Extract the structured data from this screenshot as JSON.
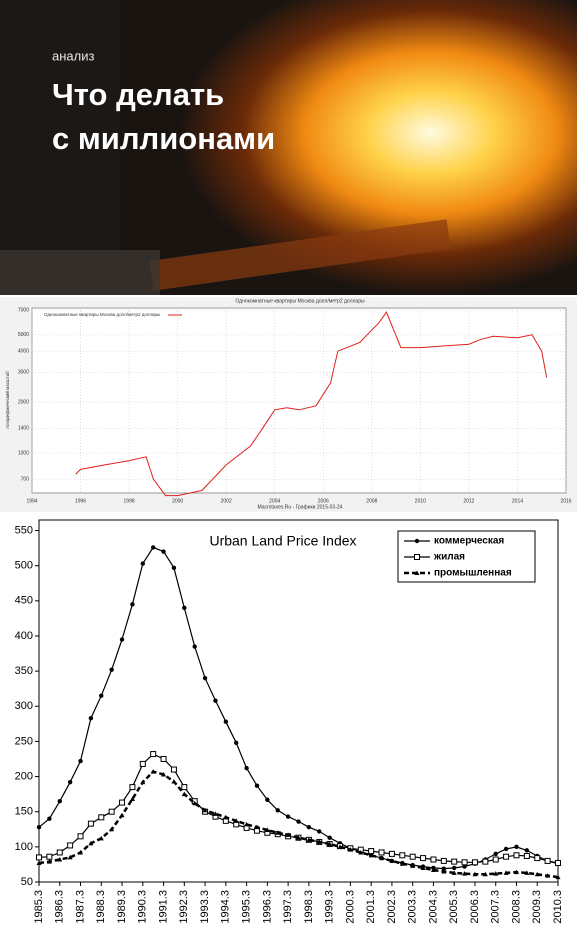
{
  "header": {
    "kicker": "анализ",
    "title_lines": [
      "Что делать",
      "с миллионами"
    ]
  },
  "chart_data": [
    {
      "type": "line",
      "title": "Однокомнатные квартиры Москва долл/метр2 доллары",
      "ylabel": "логарифмический масштаб",
      "footer": "Macrotaxes.Ru - Графики 2015-03-24",
      "log_scale": true,
      "grid": true,
      "xlim": [
        1994,
        2016
      ],
      "xticks": [
        1994,
        1996,
        1998,
        2000,
        2002,
        2004,
        2006,
        2008,
        2010,
        2012,
        2014,
        2016
      ],
      "ylim": [
        580,
        7200
      ],
      "yticks": [
        700,
        1000,
        1400,
        2000,
        3000,
        4000,
        5000,
        7000
      ],
      "series": [
        {
          "name": "Однокомнатные квартиры Москва долл/метр2 доллары",
          "color": "#e0201a",
          "x": [
            1995.8,
            1996,
            1997,
            1998,
            1998.7,
            1999,
            1999.5,
            2000,
            2001,
            2002,
            2003,
            2003.5,
            2004,
            2004.5,
            2005,
            2005.7,
            2006.3,
            2006.6,
            2007.5,
            2008.3,
            2008.6,
            2009.2,
            2010,
            2011,
            2012,
            2012.5,
            2013,
            2014,
            2014.6,
            2015,
            2015.2
          ],
          "values": [
            750,
            800,
            850,
            900,
            950,
            700,
            560,
            560,
            600,
            850,
            1100,
            1400,
            1800,
            1850,
            1800,
            1900,
            2600,
            4000,
            4500,
            5900,
            6800,
            4200,
            4200,
            4300,
            4400,
            4700,
            4900,
            4800,
            5000,
            4000,
            2800
          ]
        }
      ]
    },
    {
      "type": "line",
      "title": "Urban Land Price Index",
      "grid": false,
      "xlim": [
        1985.3,
        2010.3
      ],
      "xticks": [
        1985.3,
        1986.3,
        1987.3,
        1988.3,
        1989.3,
        1990.3,
        1991.3,
        1992.3,
        1993.3,
        1994.3,
        1995.3,
        1996.3,
        1997.3,
        1998.3,
        1999.3,
        2000.3,
        2001.3,
        2002.3,
        2003.3,
        2004.3,
        2005.3,
        2006.3,
        2007.3,
        2008.3,
        2009.3,
        2010.3
      ],
      "ylim": [
        50,
        565
      ],
      "yticks": [
        50,
        100,
        150,
        200,
        250,
        300,
        350,
        400,
        450,
        500,
        550
      ],
      "x": [
        1985.3,
        1985.8,
        1986.3,
        1986.8,
        1987.3,
        1987.8,
        1988.3,
        1988.8,
        1989.3,
        1989.8,
        1990.3,
        1990.8,
        1991.3,
        1991.8,
        1992.3,
        1992.8,
        1993.3,
        1993.8,
        1994.3,
        1994.8,
        1995.3,
        1995.8,
        1996.3,
        1996.8,
        1997.3,
        1997.8,
        1998.3,
        1998.8,
        1999.3,
        1999.8,
        2000.3,
        2000.8,
        2001.3,
        2001.8,
        2002.3,
        2002.8,
        2003.3,
        2003.8,
        2004.3,
        2004.8,
        2005.3,
        2005.8,
        2006.3,
        2006.8,
        2007.3,
        2007.8,
        2008.3,
        2008.8,
        2009.3,
        2009.8,
        2010.3
      ],
      "series": [
        {
          "name": "коммерческая",
          "color": "#000000",
          "marker": "circle",
          "dashed": false,
          "values": [
            128,
            140,
            165,
            192,
            222,
            283,
            315,
            352,
            395,
            445,
            503,
            526,
            520,
            497,
            440,
            385,
            340,
            308,
            278,
            248,
            212,
            187,
            167,
            152,
            143,
            136,
            128,
            122,
            113,
            105,
            98,
            93,
            88,
            84,
            80,
            77,
            74,
            72,
            70,
            69,
            70,
            72,
            76,
            82,
            90,
            97,
            100,
            95,
            87,
            80,
            76
          ]
        },
        {
          "name": "жилая",
          "color": "#000000",
          "marker": "square",
          "dashed": false,
          "values": [
            85,
            86,
            92,
            102,
            115,
            133,
            142,
            150,
            163,
            185,
            218,
            232,
            225,
            210,
            185,
            165,
            150,
            143,
            137,
            132,
            127,
            123,
            120,
            118,
            115,
            113,
            110,
            107,
            104,
            101,
            98,
            96,
            94,
            92,
            90,
            88,
            86,
            84,
            82,
            80,
            79,
            78,
            78,
            79,
            82,
            86,
            88,
            87,
            84,
            80,
            77
          ]
        },
        {
          "name": "промышленная",
          "color": "#000000",
          "marker": "triangle",
          "dashed": true,
          "values": [
            77,
            79,
            82,
            85,
            92,
            105,
            112,
            125,
            145,
            168,
            192,
            207,
            203,
            193,
            175,
            162,
            152,
            147,
            142,
            137,
            132,
            128,
            124,
            120,
            117,
            113,
            110,
            107,
            104,
            100,
            96,
            92,
            88,
            84,
            80,
            76,
            73,
            70,
            67,
            65,
            63,
            62,
            61,
            61,
            62,
            63,
            64,
            63,
            61,
            59,
            57
          ]
        }
      ]
    }
  ]
}
